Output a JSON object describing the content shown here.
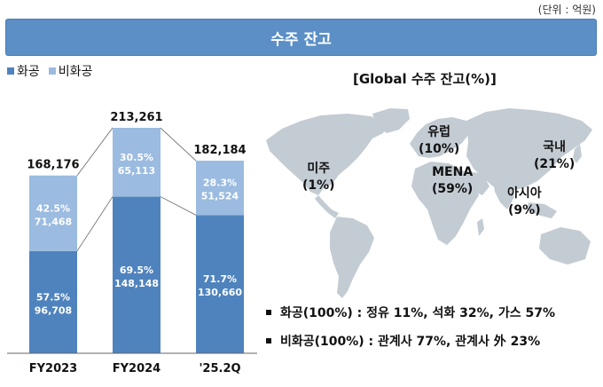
{
  "unit_label": "(단위 : 억원)",
  "banner_title": "수주 잔고",
  "colors": {
    "banner": "#5b8fc6",
    "dark_bar": "#4f83bd",
    "light_bar": "#9bbbe0",
    "map": "#c3cbd3"
  },
  "chart_data": {
    "type": "bar",
    "stacked": true,
    "categories": [
      "FY2023",
      "FY2024",
      "'25.2Q"
    ],
    "totals": [
      "168,176",
      "213,261",
      "182,184"
    ],
    "series": [
      {
        "name": "화공",
        "values": [
          96708,
          148148,
          130660
        ],
        "value_labels": [
          "96,708",
          "148,148",
          "130,660"
        ],
        "pct_labels": [
          "57.5%",
          "69.5%",
          "71.7%"
        ],
        "color": "#4f83bd"
      },
      {
        "name": "비화공",
        "values": [
          71468,
          65113,
          51524
        ],
        "value_labels": [
          "71,468",
          "65,113",
          "51,524"
        ],
        "pct_labels": [
          "42.5%",
          "30.5%",
          "28.3%"
        ],
        "color": "#9bbbe0"
      }
    ],
    "ylim": [
      0,
      220000
    ],
    "legend": "top-left"
  },
  "map": {
    "title": "[Global 수주 잔고(%)]",
    "regions": [
      {
        "name": "유럽",
        "pct": "(10%)"
      },
      {
        "name": "국내",
        "pct": "(21%)"
      },
      {
        "name": "미주",
        "pct": "(1%)"
      },
      {
        "name": "MENA",
        "pct": "(59%)"
      },
      {
        "name": "아시아",
        "pct": "(9%)"
      }
    ]
  },
  "notes": [
    "화공(100%) : 정유 11%, 석화 32%, 가스 57%",
    "비화공(100%) : 관계사 77%, 관계사 外 23%"
  ]
}
